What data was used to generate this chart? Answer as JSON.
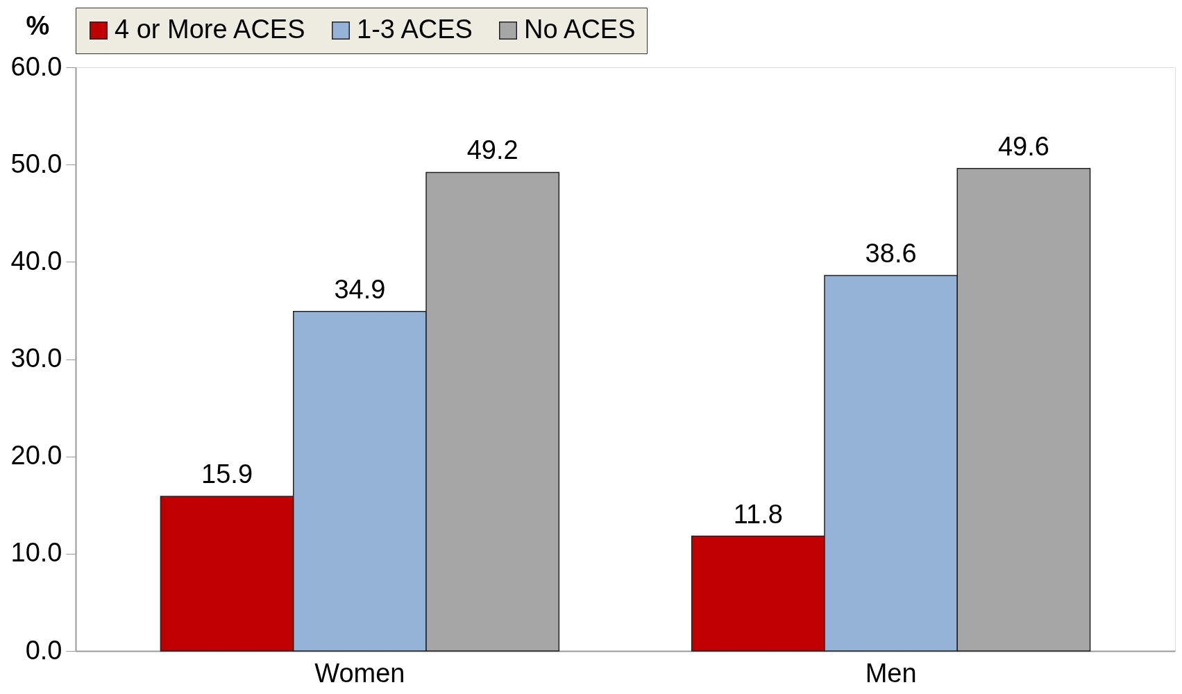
{
  "chart_data": {
    "type": "bar",
    "ylabel": "%",
    "categories": [
      "Women",
      "Men"
    ],
    "series": [
      {
        "name": "4 or More ACES",
        "color": "#c00000",
        "values": [
          15.9,
          11.8
        ]
      },
      {
        "name": "1-3 ACES",
        "color": "#95b3d7",
        "values": [
          34.9,
          38.6
        ]
      },
      {
        "name": "No ACES",
        "color": "#a6a6a6",
        "values": [
          49.2,
          49.6
        ]
      }
    ],
    "ylim": [
      0,
      60
    ],
    "yticks": [
      {
        "value": 0,
        "label": "0.0"
      },
      {
        "value": 10,
        "label": "10.0"
      },
      {
        "value": 20,
        "label": "20.0"
      },
      {
        "value": 30,
        "label": "30.0"
      },
      {
        "value": 40,
        "label": "40.0"
      },
      {
        "value": 50,
        "label": "50.0"
      },
      {
        "value": 60,
        "label": "60.0"
      }
    ],
    "data_labels": true,
    "legend": "top",
    "grid": false
  }
}
